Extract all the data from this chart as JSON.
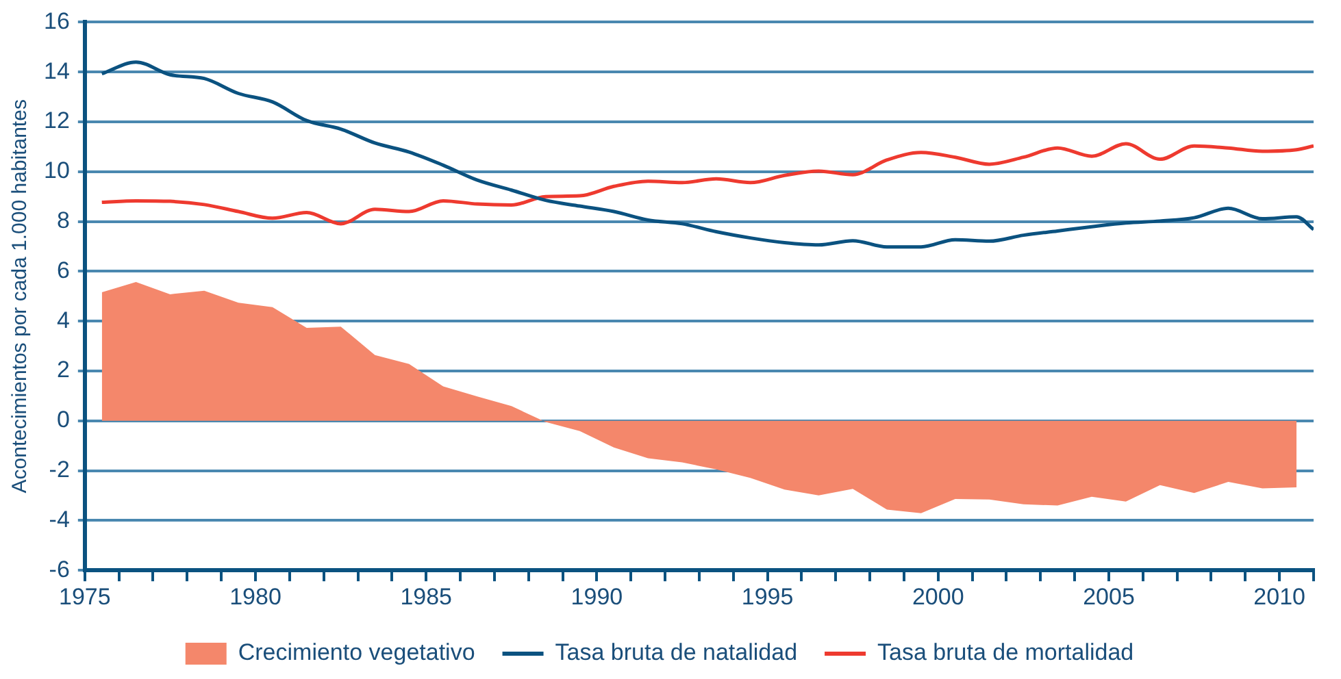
{
  "chart_data": {
    "type": "line",
    "ylabel": "Acontecimientos por cada 1.000 habitantes",
    "xlim": [
      1975,
      2011
    ],
    "xticks": [
      1975,
      {
        "value": 1976,
        "label": null
      },
      {
        "value": 1977,
        "label": null
      },
      {
        "value": 1978,
        "label": null
      },
      {
        "value": 1979,
        "label": null
      },
      1980,
      {
        "value": 1981,
        "label": null
      },
      {
        "value": 1982,
        "label": null
      },
      {
        "value": 1983,
        "label": null
      },
      {
        "value": 1984,
        "label": null
      },
      1985,
      {
        "value": 1986,
        "label": null
      },
      {
        "value": 1987,
        "label": null
      },
      {
        "value": 1988,
        "label": null
      },
      {
        "value": 1989,
        "label": null
      },
      1990,
      {
        "value": 1991,
        "label": null
      },
      {
        "value": 1992,
        "label": null
      },
      {
        "value": 1993,
        "label": null
      },
      {
        "value": 1994,
        "label": null
      },
      1995,
      {
        "value": 1996,
        "label": null
      },
      {
        "value": 1997,
        "label": null
      },
      {
        "value": 1998,
        "label": null
      },
      {
        "value": 1999,
        "label": null
      },
      2000,
      {
        "value": 2001,
        "label": null
      },
      {
        "value": 2002,
        "label": null
      },
      {
        "value": 2003,
        "label": null
      },
      {
        "value": 2004,
        "label": null
      },
      2005,
      {
        "value": 2006,
        "label": null
      },
      {
        "value": 2007,
        "label": null
      },
      {
        "value": 2008,
        "label": null
      },
      {
        "value": 2009,
        "label": null
      },
      2010,
      {
        "value": 2011,
        "label": null
      }
    ],
    "ylim": [
      -6,
      16
    ],
    "yticks": [
      -6,
      -4,
      -2,
      0,
      2,
      4,
      6,
      8,
      10,
      12,
      14,
      16
    ],
    "grid": "y",
    "legend": "bottom",
    "marker": "none",
    "series": [
      {
        "name": "Crecimiento vegetativo",
        "type": "area",
        "color": "#f4876b",
        "x": [
          1975.5,
          1976.5,
          1977.5,
          1978.5,
          1979.5,
          1980.5,
          1981.5,
          1982.5,
          1983.5,
          1984.5,
          1985.5,
          1986.5,
          1987.5,
          1988.5,
          1989.5,
          1990.5,
          1991.5,
          1992.5,
          1993.5,
          1994.5,
          1995.5,
          1996.5,
          1997.5,
          1998.5,
          1999.5,
          2000.5,
          2001.5,
          2002.5,
          2003.5,
          2004.5,
          2005.5,
          2006.5,
          2007.5,
          2008.5,
          2009.5,
          2010.5
        ],
        "values": [
          5.16,
          5.57,
          5.08,
          5.22,
          4.74,
          4.56,
          3.73,
          3.78,
          2.64,
          2.28,
          1.38,
          0.98,
          0.59,
          -0.05,
          -0.41,
          -1.07,
          -1.5,
          -1.67,
          -1.95,
          -2.29,
          -2.76,
          -2.99,
          -2.73,
          -3.56,
          -3.71,
          -3.14,
          -3.16,
          -3.35,
          -3.4,
          -3.05,
          -3.24,
          -2.58,
          -2.9,
          -2.45,
          -2.71,
          -2.67
        ]
      },
      {
        "name": "Tasa bruta de natalidad",
        "color": "#0b5280",
        "x": [
          1975.5,
          1976.5,
          1977.5,
          1978.5,
          1979.5,
          1980.5,
          1981.5,
          1982.5,
          1983.5,
          1984.5,
          1985.5,
          1986.5,
          1987.5,
          1988.5,
          1989.5,
          1990.5,
          1991.5,
          1992.5,
          1993.5,
          1994.5,
          1995.5,
          1996.5,
          1997.5,
          1998.5,
          1999.5,
          2000.5,
          2001.5,
          2002.5,
          2003.5,
          2004.5,
          2005.5,
          2006.5,
          2007.5,
          2008.5,
          2009.5,
          2010.5,
          2011
        ],
        "values": [
          13.93,
          14.4,
          13.89,
          13.74,
          13.14,
          12.8,
          12.05,
          11.71,
          11.15,
          10.79,
          10.26,
          9.66,
          9.26,
          8.85,
          8.62,
          8.4,
          8.06,
          7.91,
          7.59,
          7.34,
          7.15,
          7.06,
          7.23,
          6.98,
          6.98,
          7.27,
          7.21,
          7.45,
          7.62,
          7.79,
          7.94,
          8.02,
          8.15,
          8.53,
          8.11,
          8.19,
          7.68
        ]
      },
      {
        "name": "Tasa bruta de mortalidad",
        "color": "#ee3a2f",
        "x": [
          1975.5,
          1976.5,
          1977.5,
          1978.5,
          1979.5,
          1980.5,
          1981.5,
          1982.5,
          1983.5,
          1984.5,
          1985.5,
          1986.5,
          1987.5,
          1988.5,
          1989.5,
          1990.5,
          1991.5,
          1992.5,
          1993.5,
          1994.5,
          1995.5,
          1996.5,
          1997.5,
          1998.5,
          1999.5,
          2000.5,
          2001.5,
          2002.5,
          2003.5,
          2004.5,
          2005.5,
          2006.5,
          2007.5,
          2008.5,
          2009.5,
          2010.5,
          2011
        ],
        "values": [
          8.77,
          8.83,
          8.81,
          8.68,
          8.4,
          8.13,
          8.36,
          7.91,
          8.49,
          8.4,
          8.83,
          8.7,
          8.66,
          9.0,
          9.03,
          9.41,
          9.62,
          9.56,
          9.71,
          9.56,
          9.85,
          10.02,
          9.88,
          10.47,
          10.77,
          10.58,
          10.3,
          10.58,
          10.95,
          10.62,
          11.12,
          10.5,
          11.03,
          10.95,
          10.82,
          10.88,
          11.03
        ]
      }
    ]
  }
}
